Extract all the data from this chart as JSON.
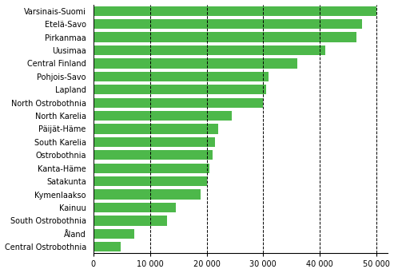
{
  "categories": [
    "Varsinais-Suomi",
    "Etelä-Savo",
    "Pirkanmaa",
    "Uusimaa",
    "Central Finland",
    "Pohjois-Savo",
    "Lapland",
    "North Ostrobothnia",
    "North Karelia",
    "Päijät-Häme",
    "South Karelia",
    "Ostrobothnia",
    "Kanta-Häme",
    "Satakunta",
    "Kymenlaakso",
    "Kainuu",
    "South Ostrobothnia",
    "Åland",
    "Central Ostrobothnia"
  ],
  "values": [
    50000,
    47500,
    46500,
    41000,
    36000,
    31000,
    30500,
    30000,
    24500,
    22000,
    21500,
    21000,
    20500,
    20000,
    19000,
    14500,
    13000,
    7200,
    4800
  ],
  "bar_color": "#4db84a",
  "background_color": "#ffffff",
  "xlim": [
    0,
    52000
  ],
  "xticks": [
    0,
    10000,
    20000,
    30000,
    40000,
    50000
  ],
  "xtick_labels": [
    "0",
    "10 000",
    "20 000",
    "30 000",
    "40 000",
    "50 000"
  ],
  "grid_color": "#000000",
  "label_fontsize": 7.0,
  "tick_fontsize": 7.0
}
